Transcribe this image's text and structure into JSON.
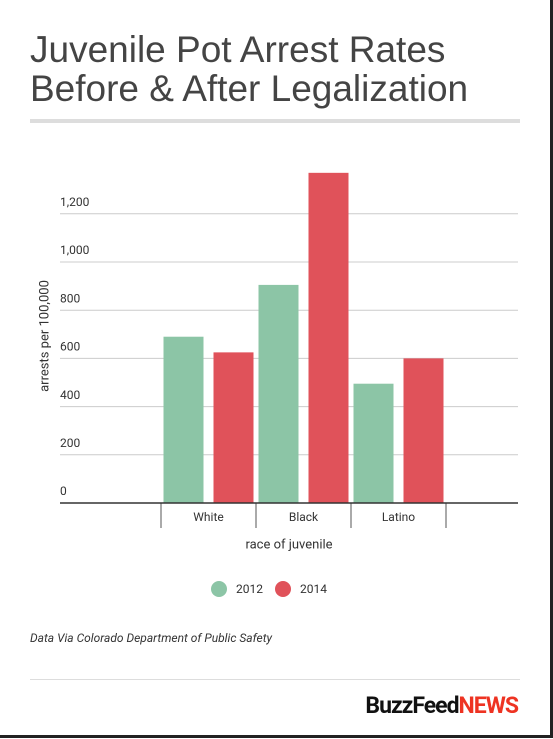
{
  "chart_data": {
    "type": "bar",
    "title_lines": [
      "Juvenile Pot Arrest Rates",
      "Before & After Legalization"
    ],
    "categories": [
      "White",
      "Black",
      "Latino"
    ],
    "series": [
      {
        "name": "2012",
        "color": "#8cc5a6",
        "values": [
          690,
          905,
          495
        ]
      },
      {
        "name": "2014",
        "color": "#e0525a",
        "values": [
          625,
          1370,
          600
        ]
      }
    ],
    "ylim": [
      0,
      1400
    ],
    "yticks": [
      0,
      200,
      400,
      600,
      800,
      {
        "value": 1000,
        "label": "1,000"
      },
      {
        "value": 1200,
        "label": "1,200"
      }
    ],
    "ylabel": "arrests per 100,000",
    "xlabel": "race of juvenile",
    "grid": true,
    "source": "Data Via Colorado Department of Public Safety",
    "logo": {
      "brand": "BuzzFeed",
      "suffix": "NEWS"
    }
  }
}
